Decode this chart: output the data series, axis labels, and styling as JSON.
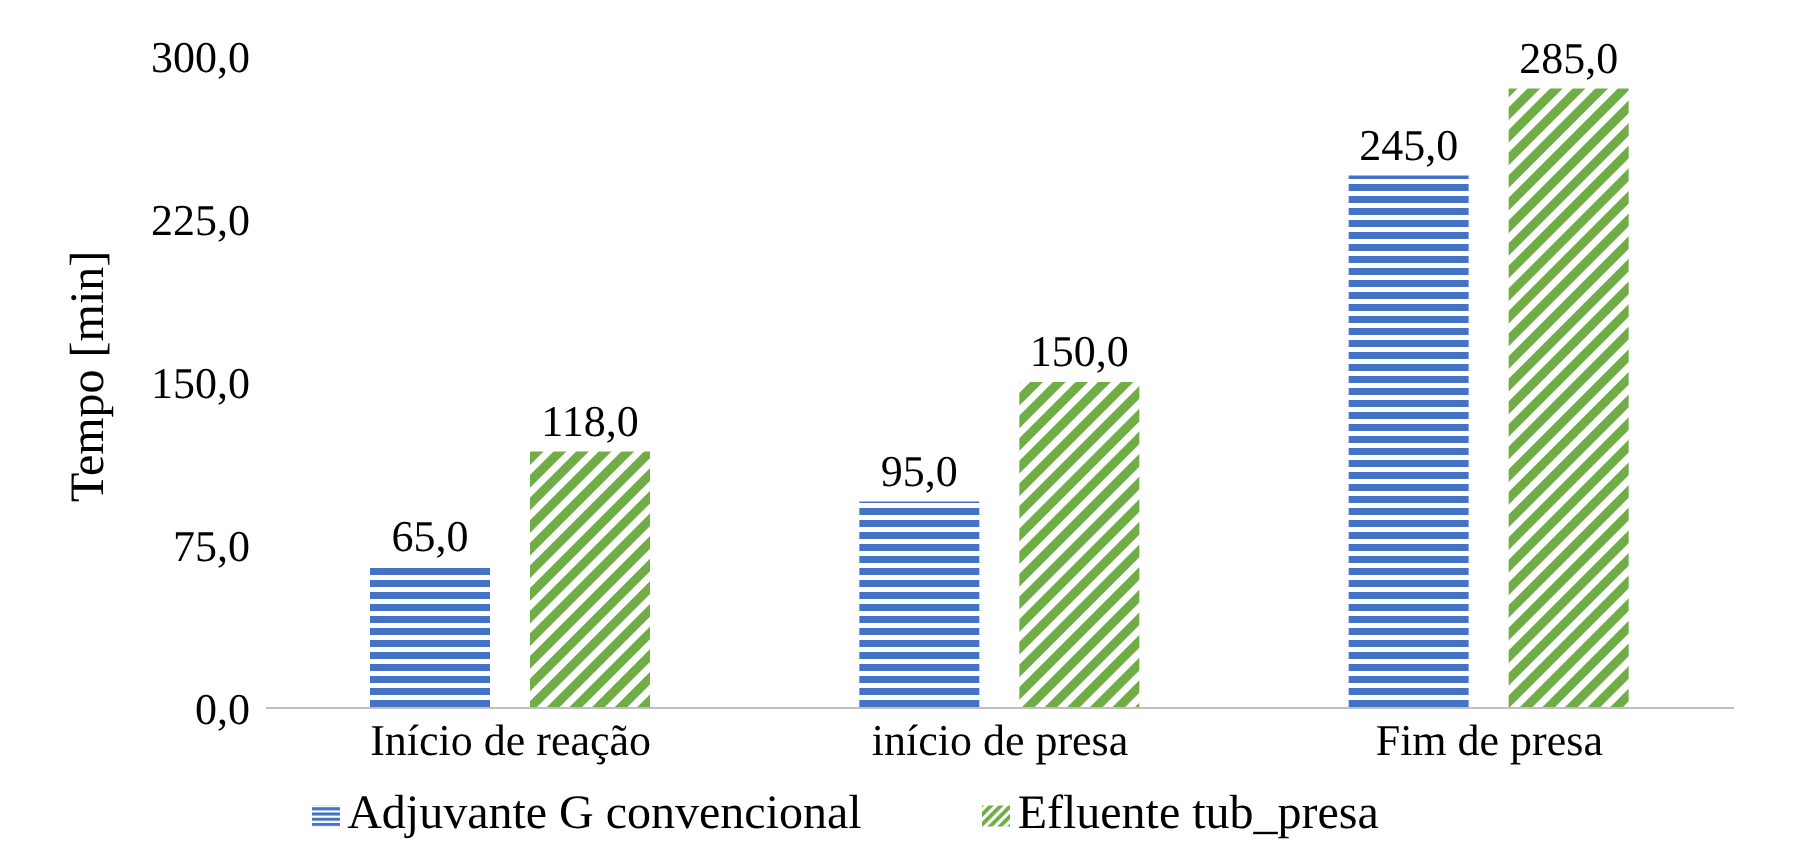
{
  "chart_data": {
    "type": "bar",
    "ylabel": "Tempo [min]",
    "categories": [
      "Início de reação",
      "início de presa",
      "Fim de presa"
    ],
    "series": [
      {
        "name": "Adjuvante G convencional",
        "color": "#4472c4",
        "values": [
          65,
          95,
          245
        ],
        "value_labels": [
          "65,0",
          "95,0",
          "245,0"
        ]
      },
      {
        "name": "Efluente tub_presa",
        "color": "#70ad47",
        "values": [
          118,
          150,
          285
        ],
        "value_labels": [
          "118,0",
          "150,0",
          "285,0"
        ]
      }
    ],
    "ylim": [
      0,
      300
    ],
    "yticks": [
      {
        "value": 0,
        "label": "0,0"
      },
      {
        "value": 75,
        "label": "75,0"
      },
      {
        "value": 150,
        "label": "150,0"
      },
      {
        "value": 225,
        "label": "225,0"
      },
      {
        "value": 300,
        "label": "300,0"
      }
    ],
    "legend": "bottom"
  }
}
